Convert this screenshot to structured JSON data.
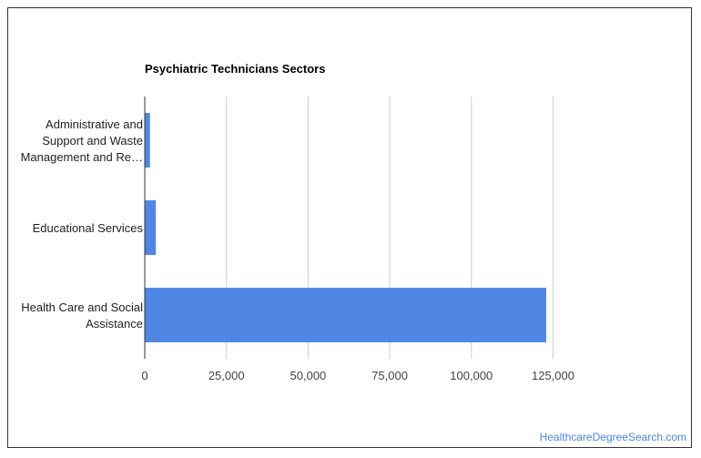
{
  "chart_data": {
    "type": "bar",
    "orientation": "horizontal",
    "title": "Psychiatric Technicians Sectors",
    "categories": [
      [
        "Administrative and",
        "Support and Waste",
        "Management and Re…"
      ],
      [
        "Educational Services"
      ],
      [
        "Health Care and Social",
        "Assistance"
      ]
    ],
    "values": [
      1600,
      3400,
      122900
    ],
    "x_ticks": [
      "0",
      "25,000",
      "50,000",
      "75,000",
      "100,000",
      "125,000"
    ],
    "x_tick_values": [
      0,
      25000,
      50000,
      75000,
      100000,
      125000
    ],
    "xlim": [
      0,
      125000
    ],
    "grid": true,
    "bar_color": "#5087e4",
    "grid_color": "#cccccc"
  },
  "footer": {
    "source": "HealthcareDegreeSearch.com"
  }
}
